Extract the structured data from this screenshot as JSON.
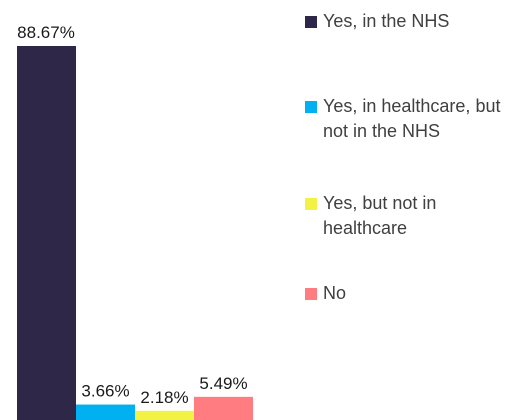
{
  "chart_data": {
    "type": "bar",
    "categories": [
      "Yes, in the NHS",
      "Yes, in healthcare, but not in the NHS",
      "Yes, but not in healthcare",
      "No"
    ],
    "values": [
      88.67,
      3.66,
      2.18,
      5.49
    ],
    "data_labels": [
      "88.67%",
      "3.66%",
      "2.18%",
      "5.49%"
    ],
    "colors": [
      "#2f2747",
      "#00b0f0",
      "#f2f244",
      "#ff7c80"
    ],
    "title": "",
    "xlabel": "",
    "ylabel": "",
    "ylim": [
      0,
      100
    ],
    "grid": false,
    "legend": {
      "position": "right",
      "items": [
        {
          "label": "Yes, in the NHS",
          "color": "#2f2747"
        },
        {
          "label": "Yes, in healthcare, but not in the NHS",
          "color": "#00b0f0"
        },
        {
          "label": "Yes, but not in healthcare",
          "color": "#f2f244"
        },
        {
          "label": "No",
          "color": "#ff7c80"
        }
      ]
    }
  }
}
